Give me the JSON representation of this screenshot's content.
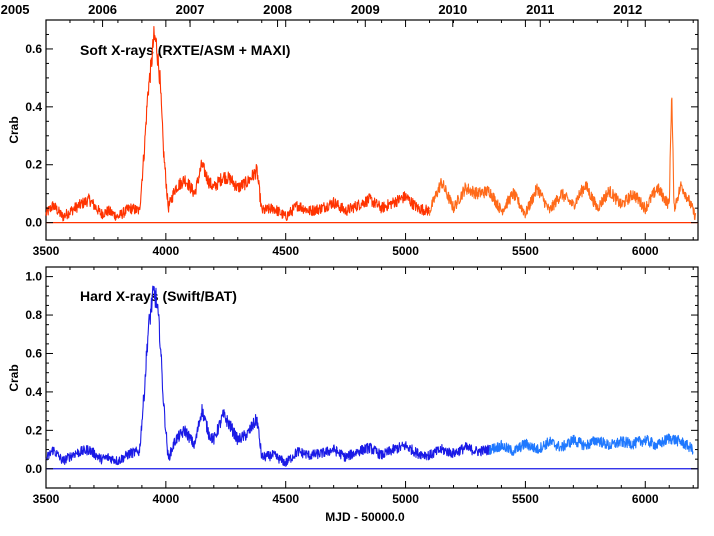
{
  "figure": {
    "xlabel": "MJD -  50000.0"
  },
  "colors": {
    "axis": "#000000",
    "soft_asm": "#ff3300",
    "soft_maxi": "#ff6a1a",
    "hard_early": "#1a1ae6",
    "hard_late": "#1f78ff",
    "baseline_soft": "#ff3300",
    "baseline_hard": "#1a1ae6"
  },
  "chart_data": [
    {
      "type": "line",
      "title": "Soft X-rays (RXTE/ASM + MAXI)",
      "ylabel": "Crab",
      "xlabel": "",
      "xlim": [
        3500,
        6220
      ],
      "ylim": [
        -0.06,
        0.7
      ],
      "x_ticks": [
        3500,
        4000,
        4500,
        5000,
        5500,
        6000
      ],
      "y_ticks": [
        0.0,
        0.2,
        0.4,
        0.6
      ],
      "y_tick_labels": [
        "0.0",
        "0.2",
        "0.4",
        "0.6"
      ],
      "top_axis_years": [
        {
          "label": "2005",
          "mjd": 3371
        },
        {
          "label": "2006",
          "mjd": 3736
        },
        {
          "label": "2007",
          "mjd": 4101
        },
        {
          "label": "2008",
          "mjd": 4466
        },
        {
          "label": "2009",
          "mjd": 4832
        },
        {
          "label": "2010",
          "mjd": 5197
        },
        {
          "label": "2011",
          "mjd": 5562
        },
        {
          "label": "2012",
          "mjd": 5927
        }
      ],
      "grid": false,
      "baseline": 0.0,
      "series": [
        {
          "x": [
            3500,
            3530,
            3570,
            3620,
            3680,
            3730,
            3760,
            3800,
            3850,
            3890,
            3910,
            3925,
            3940,
            3950,
            3960,
            3975,
            3990,
            4010,
            4040,
            4080,
            4120,
            4150,
            4180,
            4200,
            4240,
            4270,
            4300,
            4340,
            4380,
            4400,
            4450,
            4500,
            4550,
            4600,
            4650,
            4700,
            4750,
            4800,
            4850,
            4900,
            4950,
            5000,
            5050,
            5100
          ],
          "y": [
            0.03,
            0.06,
            0.02,
            0.05,
            0.08,
            0.03,
            0.04,
            0.02,
            0.05,
            0.04,
            0.25,
            0.45,
            0.55,
            0.64,
            0.62,
            0.5,
            0.25,
            0.05,
            0.12,
            0.15,
            0.1,
            0.2,
            0.14,
            0.12,
            0.16,
            0.15,
            0.12,
            0.14,
            0.18,
            0.04,
            0.05,
            0.02,
            0.06,
            0.04,
            0.05,
            0.07,
            0.04,
            0.06,
            0.08,
            0.05,
            0.07,
            0.09,
            0.05,
            0.04
          ]
        },
        {
          "x": [
            5100,
            5150,
            5200,
            5250,
            5300,
            5350,
            5400,
            5450,
            5500,
            5550,
            5600,
            5650,
            5700,
            5750,
            5800,
            5850,
            5900,
            5950,
            6000,
            6050,
            6100,
            6110,
            6120,
            6150,
            6180,
            6210
          ],
          "y": [
            0.04,
            0.14,
            0.05,
            0.12,
            0.1,
            0.11,
            0.04,
            0.1,
            0.03,
            0.12,
            0.04,
            0.1,
            0.06,
            0.13,
            0.05,
            0.11,
            0.06,
            0.1,
            0.05,
            0.12,
            0.06,
            0.46,
            0.05,
            0.13,
            0.08,
            0.02
          ]
        }
      ]
    },
    {
      "type": "line",
      "title": "Hard X-rays (Swift/BAT)",
      "ylabel": "Crab",
      "xlabel": "MJD -  50000.0",
      "xlim": [
        3500,
        6220
      ],
      "ylim": [
        -0.1,
        1.05
      ],
      "x_ticks": [
        3500,
        4000,
        4500,
        5000,
        5500,
        6000
      ],
      "y_ticks": [
        0.0,
        0.2,
        0.4,
        0.6,
        0.8,
        1.0
      ],
      "y_tick_labels": [
        "0.0",
        "0.2",
        "0.4",
        "0.6",
        "0.8",
        "1.0"
      ],
      "grid": false,
      "baseline": 0.0,
      "series": [
        {
          "x": [
            3500,
            3530,
            3570,
            3620,
            3680,
            3730,
            3760,
            3800,
            3850,
            3890,
            3910,
            3925,
            3940,
            3950,
            3960,
            3975,
            3990,
            4010,
            4040,
            4080,
            4120,
            4150,
            4180,
            4200,
            4240,
            4270,
            4300,
            4340,
            4380,
            4400,
            4450,
            4500,
            4550,
            4600,
            4650,
            4700,
            4750,
            4800,
            4850,
            4900,
            4950,
            5000,
            5050,
            5100,
            5150,
            5200,
            5250,
            5300,
            5350
          ],
          "y": [
            0.05,
            0.1,
            0.04,
            0.08,
            0.1,
            0.05,
            0.06,
            0.04,
            0.08,
            0.09,
            0.4,
            0.7,
            0.85,
            0.92,
            0.88,
            0.7,
            0.35,
            0.05,
            0.15,
            0.2,
            0.12,
            0.31,
            0.18,
            0.15,
            0.28,
            0.22,
            0.15,
            0.18,
            0.26,
            0.06,
            0.07,
            0.03,
            0.09,
            0.07,
            0.08,
            0.1,
            0.06,
            0.09,
            0.11,
            0.07,
            0.1,
            0.12,
            0.08,
            0.07,
            0.1,
            0.08,
            0.11,
            0.09,
            0.1
          ]
        },
        {
          "x": [
            5350,
            5400,
            5450,
            5500,
            5550,
            5600,
            5650,
            5700,
            5750,
            5800,
            5850,
            5900,
            5950,
            6000,
            6050,
            6100,
            6150,
            6200
          ],
          "y": [
            0.1,
            0.12,
            0.09,
            0.13,
            0.1,
            0.14,
            0.11,
            0.15,
            0.12,
            0.15,
            0.12,
            0.14,
            0.13,
            0.15,
            0.12,
            0.16,
            0.14,
            0.1
          ]
        }
      ]
    }
  ]
}
